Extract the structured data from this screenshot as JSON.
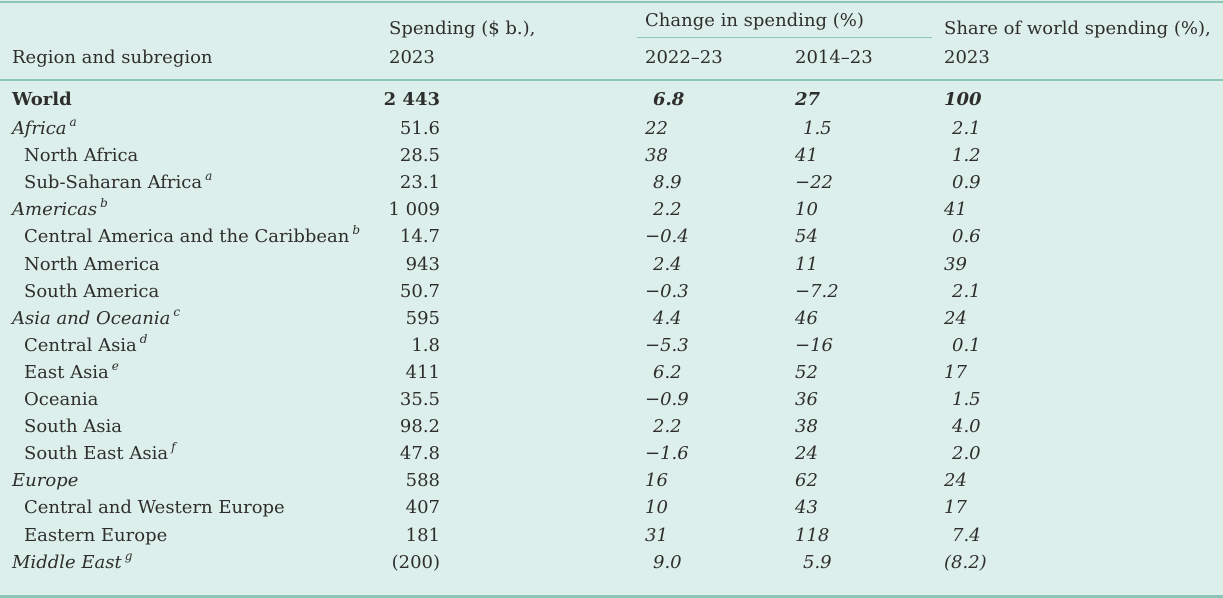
{
  "header": {
    "region": "Region and subregion",
    "spending_line1": "Spending ($ b.),",
    "spending_line2": "2023",
    "change_group": "Change in spending (%)",
    "change_1": "2022–23",
    "change_2": "2014–23",
    "share_line1": "Share of world spending (%),",
    "share_line2": "2023"
  },
  "rows": [
    {
      "name": "World",
      "level": "world",
      "note": "",
      "spending": "2 443",
      "change_2022_23": "6.8",
      "change_2014_23": "27",
      "share": "100"
    },
    {
      "name": "Africa",
      "level": "region",
      "note": "a",
      "spending": "51.6",
      "change_2022_23": "22",
      "change_2014_23": "1.5",
      "share": "2.1"
    },
    {
      "name": "North Africa",
      "level": "sub",
      "note": "",
      "spending": "28.5",
      "change_2022_23": "38",
      "change_2014_23": "41",
      "share": "1.2"
    },
    {
      "name": "Sub-Saharan Africa",
      "level": "sub",
      "note": "a",
      "spending": "23.1",
      "change_2022_23": "8.9",
      "change_2014_23": "−22",
      "share": "0.9"
    },
    {
      "name": "Americas",
      "level": "region",
      "note": "b",
      "spending": "1 009",
      "change_2022_23": "2.2",
      "change_2014_23": "10",
      "share": "41"
    },
    {
      "name": "Central America and the Caribbean",
      "level": "sub",
      "note": "b",
      "spending": "14.7",
      "change_2022_23": "−0.4",
      "change_2014_23": "54",
      "share": "0.6"
    },
    {
      "name": "North America",
      "level": "sub",
      "note": "",
      "spending": "943",
      "change_2022_23": "2.4",
      "change_2014_23": "11",
      "share": "39"
    },
    {
      "name": "South America",
      "level": "sub",
      "note": "",
      "spending": "50.7",
      "change_2022_23": "−0.3",
      "change_2014_23": "−7.2",
      "share": "2.1"
    },
    {
      "name": "Asia and Oceania",
      "level": "region",
      "note": "c",
      "spending": "595",
      "change_2022_23": "4.4",
      "change_2014_23": "46",
      "share": "24"
    },
    {
      "name": "Central Asia",
      "level": "sub",
      "note": "d",
      "spending": "1.8",
      "change_2022_23": "−5.3",
      "change_2014_23": "−16",
      "share": "0.1"
    },
    {
      "name": "East Asia",
      "level": "sub",
      "note": "e",
      "spending": "411",
      "change_2022_23": "6.2",
      "change_2014_23": "52",
      "share": "17"
    },
    {
      "name": "Oceania",
      "level": "sub",
      "note": "",
      "spending": "35.5",
      "change_2022_23": "−0.9",
      "change_2014_23": "36",
      "share": "1.5"
    },
    {
      "name": "South Asia",
      "level": "sub",
      "note": "",
      "spending": "98.2",
      "change_2022_23": "2.2",
      "change_2014_23": "38",
      "share": "4.0"
    },
    {
      "name": "South East Asia",
      "level": "sub",
      "note": "f",
      "spending": "47.8",
      "change_2022_23": "−1.6",
      "change_2014_23": "24",
      "share": "2.0"
    },
    {
      "name": "Europe",
      "level": "region",
      "note": "",
      "spending": "588",
      "change_2022_23": "16",
      "change_2014_23": "62",
      "share": "24"
    },
    {
      "name": "Central and Western Europe",
      "level": "sub",
      "note": "",
      "spending": "407",
      "change_2022_23": "10",
      "change_2014_23": "43",
      "share": "17"
    },
    {
      "name": "Eastern Europe",
      "level": "sub",
      "note": "",
      "spending": "181",
      "change_2022_23": "31",
      "change_2014_23": "118",
      "share": "7.4"
    },
    {
      "name": "Middle East",
      "level": "region",
      "note": "g",
      "spending": "(200)",
      "change_2022_23": "9.0",
      "change_2014_23": "5.9",
      "share": "(8.2)"
    }
  ]
}
